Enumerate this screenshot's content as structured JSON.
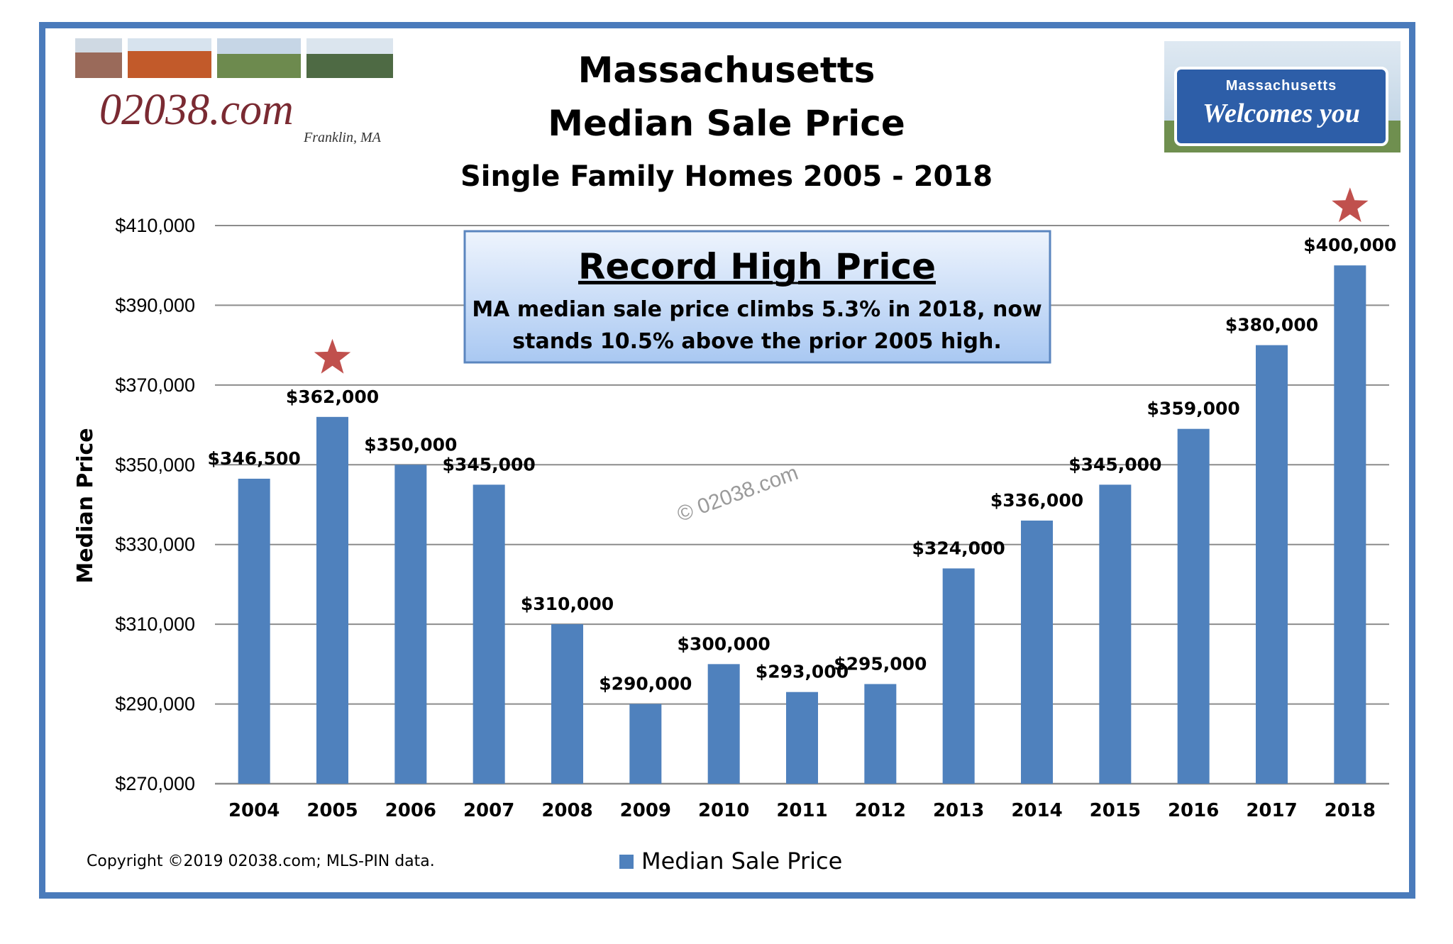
{
  "chart_data": {
    "type": "bar",
    "title": "Massachusetts",
    "title_line2": "Median Sale Price",
    "subtitle": "Single Family Homes 2005 - 2018",
    "xlabel": "",
    "ylabel": "Median Price",
    "ylim": [
      270000,
      410000
    ],
    "y_ticks": [
      270000,
      290000,
      310000,
      330000,
      350000,
      370000,
      390000,
      410000
    ],
    "y_tick_labels": [
      "$270,000",
      "$290,000",
      "$310,000",
      "$330,000",
      "$350,000",
      "$370,000",
      "$390,000",
      "$410,000"
    ],
    "categories": [
      "2004",
      "2005",
      "2006",
      "2007",
      "2008",
      "2009",
      "2010",
      "2011",
      "2012",
      "2013",
      "2014",
      "2015",
      "2016",
      "2017",
      "2018"
    ],
    "series": [
      {
        "name": "Median Sale Price",
        "color": "#4f81bd",
        "values": [
          346500,
          362000,
          350000,
          345000,
          310000,
          290000,
          300000,
          293000,
          295000,
          324000,
          336000,
          345000,
          359000,
          380000,
          400000
        ],
        "data_labels": [
          "$346,500",
          "$362,000",
          "$350,000",
          "$345,000",
          "$310,000",
          "$290,000",
          "$300,000",
          "$293,000",
          "$295,000",
          "$324,000",
          "$336,000",
          "$345,000",
          "$359,000",
          "$380,000",
          "$400,000"
        ]
      }
    ],
    "highlighted_categories": [
      "2005",
      "2018"
    ],
    "highlight_color": "#c0504d",
    "grid": true,
    "legend": "bottom-center",
    "annotation": {
      "title": "Record High Price",
      "line1": "MA median sale price climbs 5.3% in 2018, now",
      "line2": "stands 10.5% above the prior 2005  high."
    },
    "watermark": "© 02038.com",
    "copyright": "Copyright ©2019 02038.com; MLS-PIN data."
  },
  "logo": {
    "text": "02038.com",
    "subtext": "Franklin, MA"
  },
  "sign": {
    "top": "Massachusetts",
    "main": "Welcomes you"
  },
  "colors": {
    "frame": "#4a7bbb",
    "bar": "#4f81bd",
    "star": "#c0504d",
    "grid": "#8c8c8c"
  }
}
